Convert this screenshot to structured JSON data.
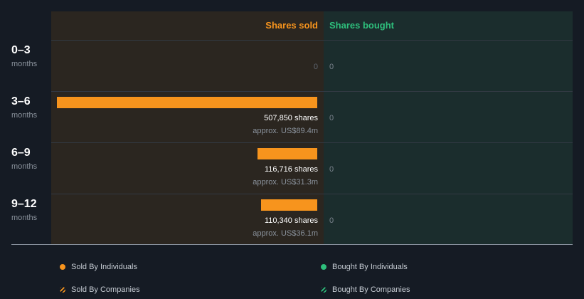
{
  "chart_data": {
    "type": "bar",
    "headers": {
      "sold": "Shares sold",
      "bought": "Shares bought"
    },
    "categories": [
      {
        "range": "0–3",
        "unit": "months"
      },
      {
        "range": "3–6",
        "unit": "months"
      },
      {
        "range": "6–9",
        "unit": "months"
      },
      {
        "range": "9–12",
        "unit": "months"
      }
    ],
    "series": [
      {
        "name": "Shares sold",
        "values": [
          0,
          507850,
          116716,
          110340
        ]
      },
      {
        "name": "Shares bought",
        "values": [
          0,
          0,
          0,
          0
        ]
      }
    ],
    "sold_labels": [
      {
        "shares": "0",
        "approx": ""
      },
      {
        "shares": "507,850 shares",
        "approx": "approx. US$89.4m"
      },
      {
        "shares": "116,716 shares",
        "approx": "approx. US$31.3m"
      },
      {
        "shares": "110,340 shares",
        "approx": "approx. US$36.1m"
      }
    ],
    "bought_labels": [
      "0",
      "0",
      "0",
      "0"
    ],
    "legend": [
      {
        "label": "Sold By Individuals",
        "color": "#f7941d",
        "style": "solid"
      },
      {
        "label": "Bought By Individuals",
        "color": "#2ebf7c",
        "style": "solid"
      },
      {
        "label": "Sold By Companies",
        "color": "#f7941d",
        "style": "hatched"
      },
      {
        "label": "Bought By Companies",
        "color": "#2ebf7c",
        "style": "hatched"
      }
    ],
    "colors": {
      "sold": "#f7941d",
      "bought": "#2ebf7c"
    }
  }
}
